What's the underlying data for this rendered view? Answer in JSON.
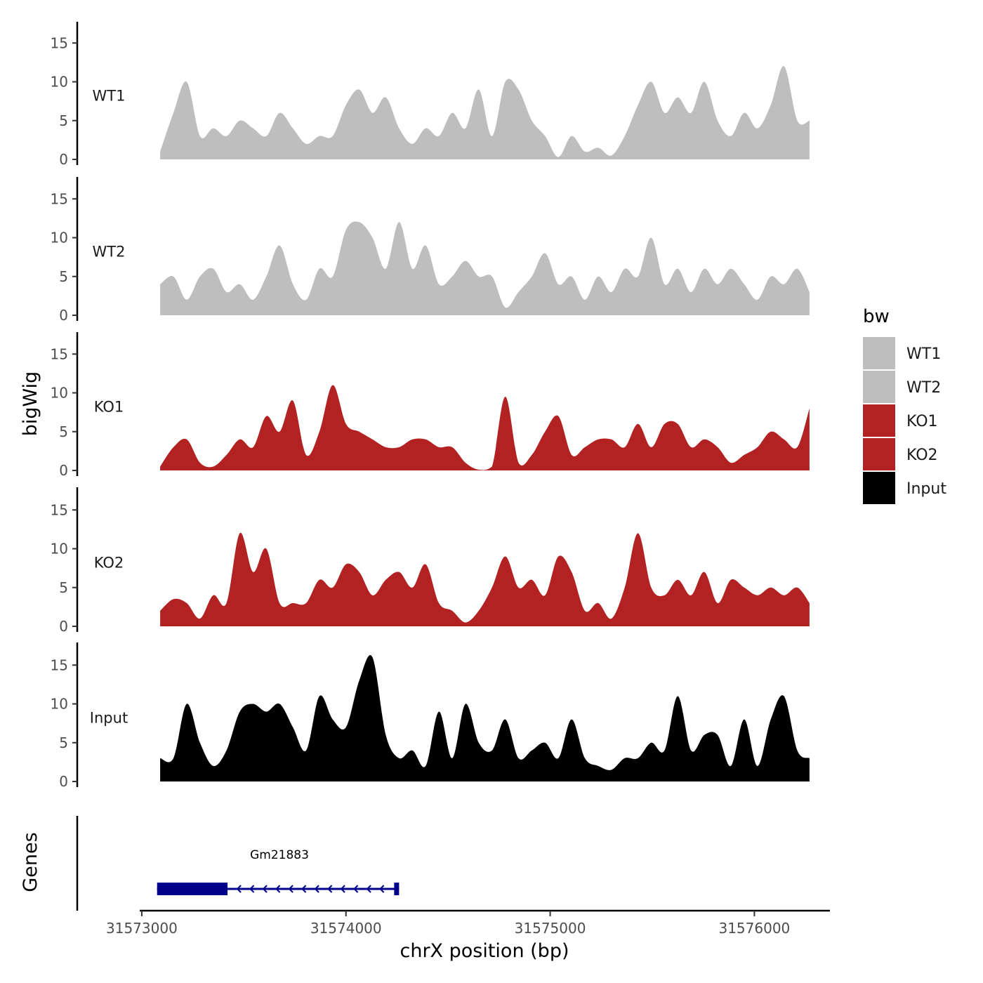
{
  "chart_data": {
    "type": "area",
    "xlabel": "chrX position (bp)",
    "ylabel": "bigWig",
    "genes_label": "Genes",
    "xlim": [
      31572990,
      31576370
    ],
    "ylim": [
      0,
      18
    ],
    "x_ticks": [
      31573000,
      31574000,
      31575000,
      31576000
    ],
    "y_ticks": [
      0,
      5,
      10,
      15
    ],
    "x_tick_labels": [
      "31573000",
      "31574000",
      "31575000",
      "31576000"
    ],
    "y_tick_labels": [
      "0",
      "5",
      "10",
      "15"
    ],
    "legend": {
      "title": "bw",
      "entries": [
        {
          "label": "WT1",
          "color": "#bebebe"
        },
        {
          "label": "WT2",
          "color": "#bebebe"
        },
        {
          "label": "KO1",
          "color": "#b22222"
        },
        {
          "label": "KO2",
          "color": "#b22222"
        },
        {
          "label": "Input",
          "color": "#000000"
        }
      ]
    },
    "x": [
      31573090,
      31573155,
      31573220,
      31573285,
      31573350,
      31573415,
      31573480,
      31573545,
      31573610,
      31573675,
      31573740,
      31573805,
      31573870,
      31573935,
      31574000,
      31574065,
      31574130,
      31574195,
      31574260,
      31574325,
      31574390,
      31574455,
      31574520,
      31574585,
      31574650,
      31574715,
      31574780,
      31574845,
      31574910,
      31574975,
      31575040,
      31575105,
      31575170,
      31575235,
      31575300,
      31575365,
      31575430,
      31575495,
      31575560,
      31575625,
      31575690,
      31575755,
      31575820,
      31575885,
      31575950,
      31576015,
      31576080,
      31576145,
      31576210,
      31576270
    ],
    "series": [
      {
        "name": "WT1",
        "color": "#bebebe",
        "values": [
          1,
          6,
          10,
          3,
          4,
          3,
          5,
          4,
          3,
          6,
          4,
          2,
          3,
          3,
          7,
          9,
          6,
          8,
          4,
          2,
          4,
          3,
          6,
          4,
          9,
          3,
          10,
          9,
          5,
          3,
          0.3,
          3,
          1,
          1.5,
          0.5,
          3,
          7,
          10,
          6,
          8,
          6,
          10,
          5,
          3,
          6,
          4,
          7,
          12,
          5,
          5
        ]
      },
      {
        "name": "WT2",
        "color": "#bebebe",
        "values": [
          4,
          5,
          2,
          5,
          6,
          3,
          4,
          2,
          5,
          9,
          4,
          2,
          6,
          5,
          11,
          12,
          10,
          6,
          12,
          6,
          9,
          4,
          5,
          7,
          5,
          5,
          1,
          3,
          5,
          8,
          4,
          5,
          2,
          5,
          3,
          6,
          5,
          10,
          4,
          6,
          3,
          6,
          4,
          6,
          4,
          2,
          5,
          4,
          6,
          3
        ]
      },
      {
        "name": "KO1",
        "color": "#b22222",
        "values": [
          0.5,
          3,
          4,
          1,
          0.5,
          2,
          4,
          3,
          7,
          5,
          9,
          2,
          5,
          11,
          6,
          5,
          4,
          3,
          3,
          4,
          4,
          3,
          3,
          1,
          0.1,
          0.5,
          9.5,
          1,
          2,
          5,
          7,
          2,
          3,
          4,
          4,
          3,
          6,
          3,
          6,
          6,
          3,
          4,
          3,
          1,
          2,
          3,
          5,
          4,
          3,
          8
        ]
      },
      {
        "name": "KO2",
        "color": "#b22222",
        "values": [
          2,
          3.5,
          3,
          1,
          4,
          3,
          12,
          7,
          10,
          3,
          3,
          3,
          6,
          5,
          8,
          7,
          4,
          6,
          7,
          5,
          8,
          3,
          2,
          0.5,
          2,
          5,
          9,
          5,
          6,
          4,
          9,
          7,
          2,
          3,
          1,
          5,
          12,
          5,
          4,
          6,
          4,
          7,
          3,
          6,
          5,
          4,
          5,
          4,
          5,
          3
        ]
      },
      {
        "name": "Input",
        "color": "#000000",
        "values": [
          3,
          3,
          10,
          5,
          2,
          4,
          9,
          10,
          9,
          10,
          7,
          4,
          11,
          8,
          7,
          13,
          16,
          6,
          3,
          4,
          2,
          9,
          3,
          10,
          5,
          4,
          8,
          3,
          4,
          5,
          3,
          8,
          3,
          2,
          1.5,
          3,
          3,
          5,
          4,
          11,
          4,
          6,
          6,
          2,
          8,
          2,
          8,
          11,
          4,
          3
        ]
      }
    ],
    "track_labels": [
      "WT1",
      "WT2",
      "KO1",
      "KO2",
      "Input"
    ],
    "genes": [
      {
        "name": "Gm21883",
        "start": 31573075,
        "end": 31574260,
        "thick_end": 31573420,
        "strand": "-",
        "color": "#00008b"
      }
    ]
  }
}
